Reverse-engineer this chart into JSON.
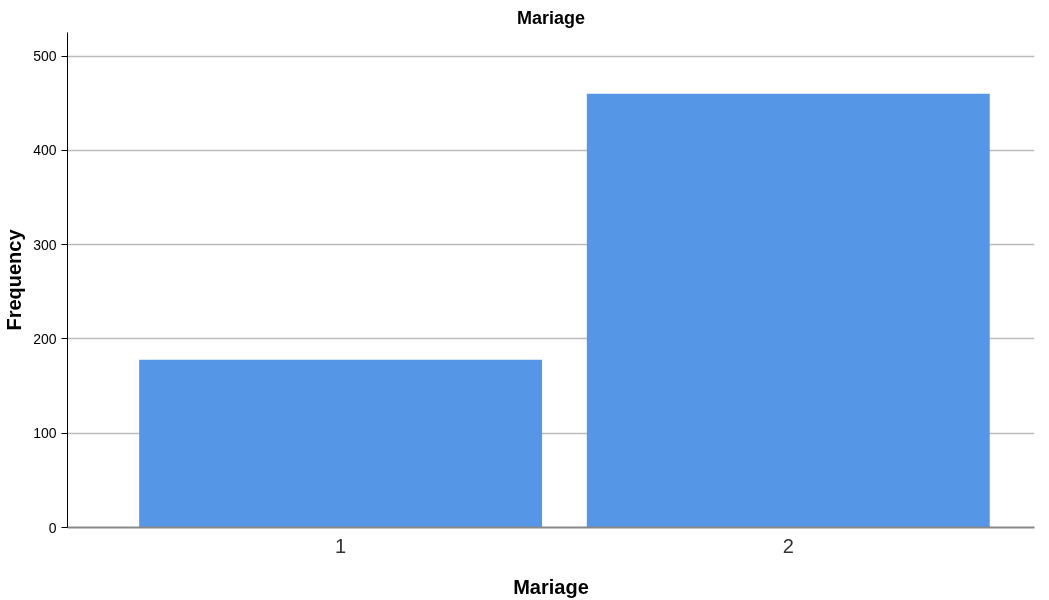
{
  "chart_data": {
    "type": "bar",
    "title": "Mariage",
    "xlabel": "Mariage",
    "ylabel": "Frequency",
    "categories": [
      "1",
      "2"
    ],
    "values": [
      178,
      460
    ],
    "color": "#5596e6",
    "ylim": [
      0,
      525
    ],
    "yticks": [
      0,
      100,
      200,
      300,
      400,
      500
    ],
    "grid": "y"
  }
}
